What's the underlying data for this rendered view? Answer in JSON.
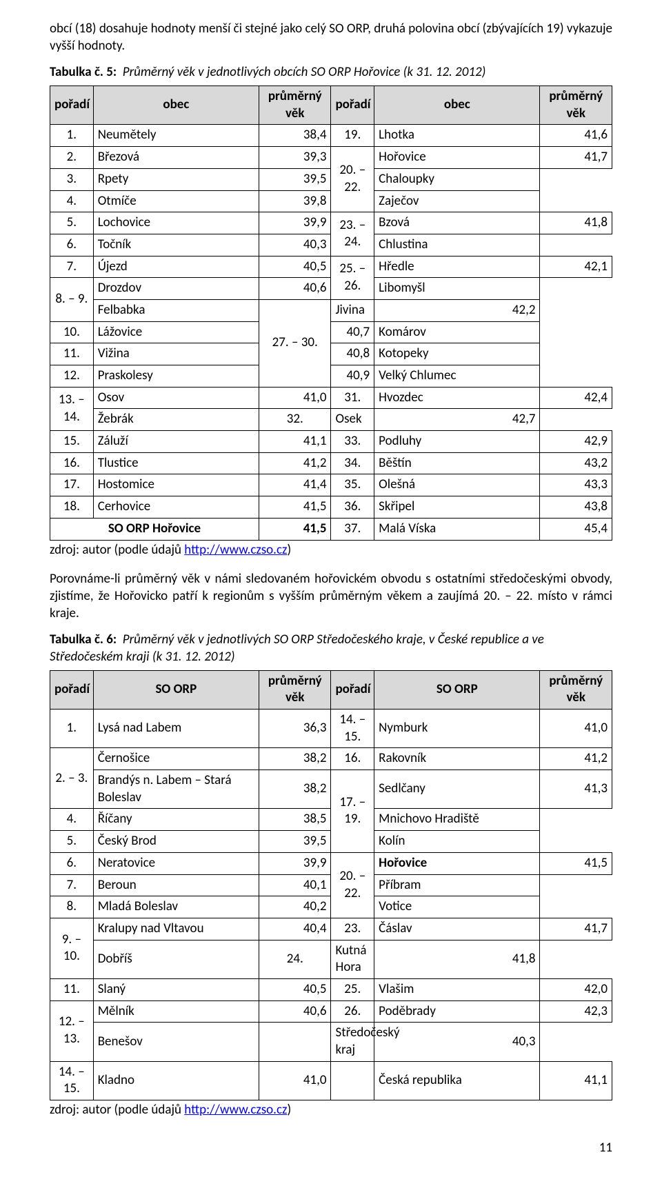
{
  "intro": "obcí (18) dosahuje hodnoty menší či stejné jako celý SO ORP, druhá polovina obcí (zbývajících 19) vykazuje vyšší hodnoty.",
  "table5": {
    "caption_label": "Tabulka č. 5:",
    "caption_title": "Průměrný věk v jednotlivých obcích SO ORP Hořovice (k 31. 12. 2012)",
    "headers": {
      "poradi": "pořadí",
      "obec": "obec",
      "vek": "průměrný věk"
    },
    "left": [
      {
        "p": "1.",
        "o": "Neumětely",
        "v": "38,4"
      },
      {
        "p": "2.",
        "o": "Březová",
        "v": "39,3"
      },
      {
        "p": "3.",
        "o": "Rpety",
        "v": "39,5"
      },
      {
        "p": "4.",
        "o": "Otmíče",
        "v": "39,8"
      },
      {
        "p": "5.",
        "o": "Lochovice",
        "v": "39,9"
      },
      {
        "p": "6.",
        "o": "Točník",
        "v": "40,3"
      },
      {
        "p": "7.",
        "o": "Újezd",
        "v": "40,5"
      },
      {
        "p": "8. – 9.",
        "o": "Drozdov",
        "v": "40,6",
        "span": 2,
        "o2": "Felbabka"
      },
      {
        "p": "10.",
        "o": "Lážovice",
        "v": "40,7"
      },
      {
        "p": "11.",
        "o": "Vižina",
        "v": "40,8"
      },
      {
        "p": "12.",
        "o": "Praskolesy",
        "v": "40,9"
      },
      {
        "p": "13. – 14.",
        "o": "Osov",
        "v": "41,0",
        "span": 2,
        "o2": "Žebrák"
      },
      {
        "p": "15.",
        "o": "Záluží",
        "v": "41,1"
      },
      {
        "p": "16.",
        "o": "Tlustice",
        "v": "41,2"
      },
      {
        "p": "17.",
        "o": "Hostomice",
        "v": "41,4"
      },
      {
        "p": "18.",
        "o": "Cerhovice",
        "v": "41,5"
      }
    ],
    "left_total": {
      "p": "",
      "o": "SO ORP Hořovice",
      "v": "41,5"
    },
    "right": [
      {
        "p": "19.",
        "o": "Lhotka",
        "v": "41,6"
      },
      {
        "p": "20. – 22.",
        "o": "Hořovice",
        "v": "41,7",
        "span": 3,
        "o2": "Chaloupky",
        "o3": "Zaječov"
      },
      {
        "p": "23. – 24.",
        "o": "Bzová",
        "v": "41,8",
        "span": 2,
        "o2": "Chlustina"
      },
      {
        "p": "25. – 26.",
        "o": "Hředle",
        "v": "42,1",
        "span": 2,
        "o2": "Libomyšl"
      },
      {
        "p": "27. – 30.",
        "o": "Jivina",
        "v": "42,2",
        "span": 4,
        "o2": "Komárov",
        "o3": "Kotopeky",
        "o4": "Velký Chlumec"
      },
      {
        "p": "31.",
        "o": "Hvozdec",
        "v": "42,4"
      },
      {
        "p": "32.",
        "o": "Osek",
        "v": "42,7"
      },
      {
        "p": "33.",
        "o": "Podluhy",
        "v": "42,9"
      },
      {
        "p": "34.",
        "o": "Běštín",
        "v": "43,2"
      },
      {
        "p": "35.",
        "o": "Olešná",
        "v": "43,3"
      },
      {
        "p": "36.",
        "o": "Skřipel",
        "v": "43,8"
      },
      {
        "p": "37.",
        "o": "Malá Víska",
        "v": "45,4"
      }
    ]
  },
  "source": {
    "prefix": "zdroj: autor (podle údajů ",
    "link": "http://www.czso.cz",
    "suffix": ")"
  },
  "mid_para": "Porovnáme-li průměrný věk v námi sledovaném hořovickém obvodu s ostatními středočeskými obvody, zjistíme, že Hořovicko patří k regionům s vyšším průměrným věkem a zaujímá 20. – 22. místo v rámci kraje.",
  "table6": {
    "caption_label": "Tabulka č. 6:",
    "caption_title": "Průměrný věk v jednotlivých SO ORP Středočeského kraje, v České republice a ve Středočeském kraji (k 31. 12. 2012)",
    "headers": {
      "poradi": "pořadí",
      "obec": "SO ORP",
      "vek": "průměrný věk"
    },
    "left": [
      {
        "p": "1.",
        "o": "Lysá nad Labem",
        "v": "36,3"
      },
      {
        "p": "2. – 3.",
        "o": "Černošice",
        "v": "38,2",
        "span": 2,
        "o2": "Brandýs n. Labem – Stará Boleslav",
        "v2": "38,2"
      },
      {
        "p": "4.",
        "o": "Říčany",
        "v": "38,5"
      },
      {
        "p": "5.",
        "o": "Český Brod",
        "v": "39,5"
      },
      {
        "p": "6.",
        "o": "Neratovice",
        "v": "39,9"
      },
      {
        "p": "7.",
        "o": "Beroun",
        "v": "40,1"
      },
      {
        "p": "8.",
        "o": "Mladá Boleslav",
        "v": "40,2"
      },
      {
        "p": "9. – 10.",
        "o": "Kralupy nad Vltavou",
        "v": "40,4",
        "span": 2,
        "o2": "Dobříš"
      },
      {
        "p": "11.",
        "o": "Slaný",
        "v": "40,5"
      },
      {
        "p": "12. – 13.",
        "o": "Mělník",
        "v": "40,6",
        "span": 2,
        "o2": "Benešov"
      },
      {
        "p": "14. – 15.",
        "o": "Kladno",
        "v": "41,0"
      }
    ],
    "right": [
      {
        "p": "14. – 15.",
        "o": "Nymburk",
        "v": "41,0"
      },
      {
        "p": "16.",
        "o": "Rakovník",
        "v": "41,2"
      },
      {
        "p": "17. – 19.",
        "o": "Sedlčany",
        "v": "41,3",
        "span": 3,
        "o2": "Mnichovo Hradiště",
        "o3": "Kolín"
      },
      {
        "p": "20. – 22.",
        "o": "Hořovice",
        "v": "41,5",
        "span": 3,
        "o2": "Příbram",
        "o3": "Votice",
        "bold_first": true
      },
      {
        "p": "23.",
        "o": "Čáslav",
        "v": "41,7"
      },
      {
        "p": "24.",
        "o": "Kutná Hora",
        "v": "41,8"
      },
      {
        "p": "25.",
        "o": "Vlašim",
        "v": "42,0"
      },
      {
        "p": "26.",
        "o": "Poděbrady",
        "v": "42,3"
      },
      {
        "p": "",
        "o": "Středočeský kraj",
        "v": "40,3"
      },
      {
        "p": "",
        "o": "Česká republika",
        "v": "41,1"
      }
    ]
  },
  "page_number": "11"
}
